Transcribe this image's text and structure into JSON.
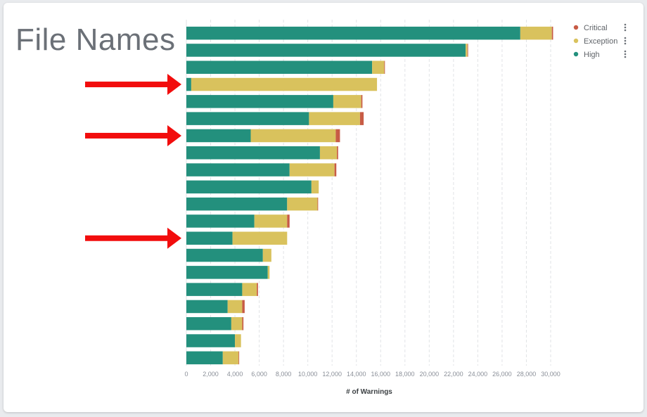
{
  "overlay": {
    "title": "File Names"
  },
  "colors": {
    "critical": "#c75b45",
    "exception": "#d9c25d",
    "high": "#23907d",
    "arrow": "#f20d0d",
    "grid": "#e1e3e6"
  },
  "legend": {
    "items": [
      {
        "label": "Critical",
        "color": "#c75b45",
        "icon": "kebab-menu-icon"
      },
      {
        "label": "Exception",
        "color": "#d9c25d",
        "icon": "kebab-menu-icon"
      },
      {
        "label": "High",
        "color": "#23907d",
        "icon": "kebab-menu-icon"
      }
    ]
  },
  "annotations": {
    "arrow_icon": "right-arrow-icon",
    "arrow_rows": [
      3,
      6,
      12
    ]
  },
  "chart_data": {
    "type": "bar",
    "orientation": "horizontal",
    "stacked": true,
    "xlabel": "# of Warnings",
    "xlim": [
      0,
      30000
    ],
    "xticks": [
      0,
      2000,
      4000,
      6000,
      8000,
      10000,
      12000,
      14000,
      16000,
      18000,
      20000,
      22000,
      24000,
      26000,
      28000,
      30000
    ],
    "xtick_labels": [
      "0",
      "2,000",
      "4,000",
      "6,000",
      "8,000",
      "10,000",
      "12,000",
      "14,000",
      "16,000",
      "18,000",
      "20,000",
      "22,000",
      "24,000",
      "26,000",
      "28,000",
      "30,000"
    ],
    "grid": "vertical dashed",
    "legend_position": "top-right",
    "series": [
      {
        "name": "High",
        "values": [
          27500,
          23000,
          15300,
          400,
          12100,
          10100,
          5300,
          11000,
          8500,
          10300,
          8300,
          5600,
          3800,
          6300,
          6700,
          4600,
          3400,
          3700,
          4000,
          3000
        ]
      },
      {
        "name": "Exception",
        "values": [
          2600,
          150,
          1000,
          15300,
          2300,
          4200,
          7000,
          1400,
          3700,
          600,
          2500,
          2700,
          4500,
          700,
          150,
          1200,
          1200,
          900,
          500,
          1300
        ]
      },
      {
        "name": "Critical",
        "values": [
          100,
          50,
          50,
          0,
          100,
          300,
          350,
          100,
          150,
          0,
          50,
          200,
          0,
          0,
          0,
          100,
          200,
          100,
          0,
          50
        ]
      }
    ]
  }
}
